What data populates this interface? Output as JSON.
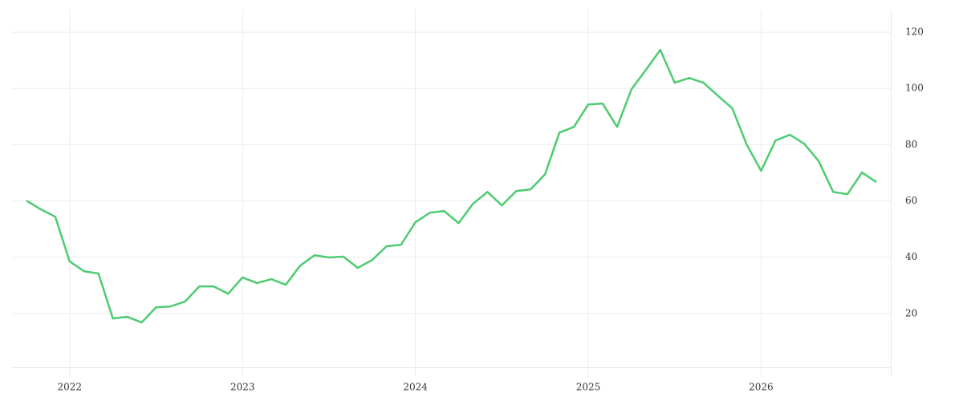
{
  "chart_data": {
    "type": "line",
    "x": [
      "2021-10",
      "2021-11",
      "2021-12",
      "2022-01",
      "2022-02",
      "2022-03",
      "2022-04",
      "2022-05",
      "2022-06",
      "2022-07",
      "2022-08",
      "2022-09",
      "2022-10",
      "2022-11",
      "2022-12",
      "2023-01",
      "2023-02",
      "2023-03",
      "2023-04",
      "2023-05",
      "2023-06",
      "2023-07",
      "2023-08",
      "2023-09",
      "2023-10",
      "2023-11",
      "2023-12",
      "2024-01",
      "2024-02",
      "2024-03",
      "2024-04",
      "2024-05",
      "2024-06",
      "2024-07",
      "2024-08",
      "2024-09",
      "2024-10",
      "2024-11",
      "2024-12",
      "2025-01",
      "2025-02",
      "2025-03",
      "2025-04",
      "2025-05",
      "2025-06",
      "2025-07",
      "2025-08",
      "2025-09",
      "2025-10",
      "2025-11",
      "2025-12",
      "2026-01",
      "2026-02",
      "2026-03",
      "2026-04",
      "2026-05",
      "2026-06",
      "2026-07",
      "2026-08",
      "2026-09"
    ],
    "series": [
      {
        "color": "#4ecb71",
        "values": [
          60.1,
          57,
          54.4,
          38.5,
          35,
          34.2,
          18.2,
          18.8,
          16.8,
          22.2,
          22.5,
          24.2,
          29.6,
          29.6,
          27,
          32.8,
          30.8,
          32.2,
          30.2,
          37,
          40.7,
          39.9,
          40.2,
          36.2,
          39,
          43.9,
          44.4,
          52.4,
          55.8,
          56.4,
          52.1,
          59,
          63.2,
          58.4,
          63.5,
          64.1,
          69.5,
          84.3,
          86.3,
          94.3,
          94.6,
          86.3,
          99.7,
          106.6,
          113.7,
          102,
          103.7,
          102,
          97.4,
          92.9,
          80,
          70.7,
          81.5,
          83.5,
          80.3,
          74.1,
          63.2,
          62.4,
          70.1,
          66.7
        ]
      }
    ],
    "xlim": [
      "2021-09",
      "2026-10"
    ],
    "xticks": [
      2022,
      2023,
      2024,
      2025,
      2026
    ],
    "ylim": [
      0,
      128
    ],
    "yticks": [
      20,
      40,
      60,
      80,
      100,
      120
    ],
    "grid": true,
    "y_axis_side": "right"
  }
}
